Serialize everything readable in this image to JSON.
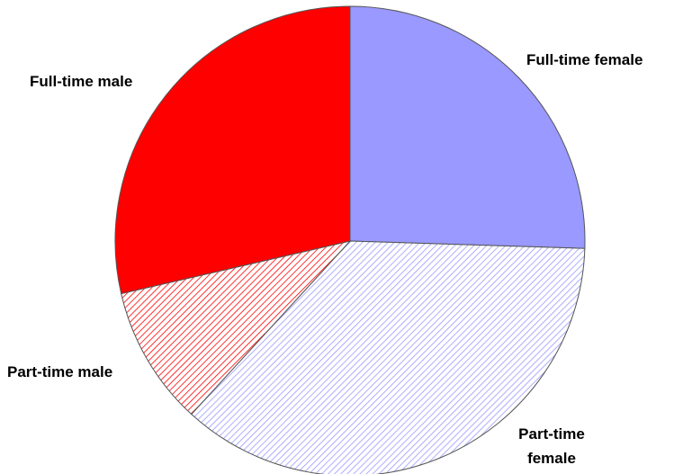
{
  "chart_data": {
    "type": "pie",
    "categories": [
      "Full-time female",
      "Part-time female",
      "Part-time male",
      "Full-time male"
    ],
    "values": [
      25.5,
      36.3,
      9.6,
      28.6
    ],
    "colors": [
      "#9999ff",
      "#9999ff",
      "#ff0000",
      "#ff0000"
    ],
    "hatched": [
      false,
      true,
      true,
      false
    ]
  }
}
